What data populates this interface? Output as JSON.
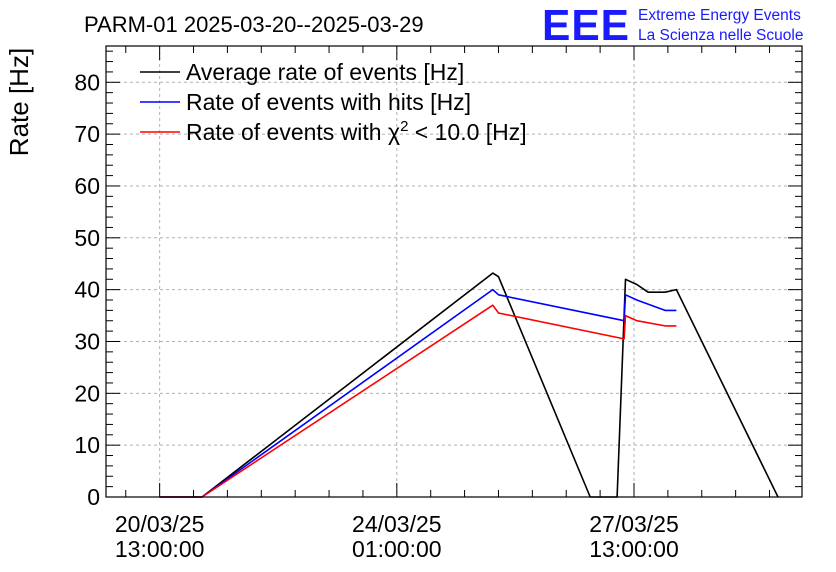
{
  "header": {
    "title": "PARM-01 2025-03-20--2025-03-29",
    "logo_mark": "EEE",
    "logo_line1": "Extreme Energy Events",
    "logo_line2": "La Scienza nelle Scuole",
    "brand_color": "#1a1aff"
  },
  "chart_data": {
    "type": "line",
    "title": "PARM-01 2025-03-20--2025-03-29",
    "xlabel": "",
    "ylabel": "Rate [Hz]",
    "ylim": [
      0,
      87
    ],
    "xlim": [
      "2025-03-19T18:00:00",
      "2025-03-30T00:30:00"
    ],
    "grid": true,
    "legend_position": "top-left",
    "yticks": [
      0,
      10,
      20,
      30,
      40,
      50,
      60,
      70,
      80
    ],
    "ytick_labels": [
      "0",
      "10",
      "20",
      "30",
      "40",
      "50",
      "60",
      "70",
      "80"
    ],
    "xticks": [
      {
        "t": "2025-03-20T13:00:00",
        "date": "20/03/25",
        "time": "13:00:00"
      },
      {
        "t": "2025-03-24T01:00:00",
        "date": "24/03/25",
        "time": "01:00:00"
      },
      {
        "t": "2025-03-27T13:00:00",
        "date": "27/03/25",
        "time": "13:00:00"
      }
    ],
    "series": [
      {
        "name": "Average rate of events [Hz]",
        "color": "#000000",
        "points": [
          [
            "2025-03-20T13:00:00",
            0
          ],
          [
            "2025-03-21T04:00:00",
            0
          ],
          [
            "2025-03-25T11:00:00",
            43.2
          ],
          [
            "2025-03-25T13:00:00",
            42.5
          ],
          [
            "2025-03-26T21:30:00",
            0
          ],
          [
            "2025-03-27T07:00:00",
            0
          ],
          [
            "2025-03-27T10:00:00",
            42.0
          ],
          [
            "2025-03-27T14:00:00",
            41.0
          ],
          [
            "2025-03-27T18:00:00",
            39.5
          ],
          [
            "2025-03-28T00:00:00",
            39.5
          ],
          [
            "2025-03-28T04:00:00",
            40.0
          ],
          [
            "2025-03-29T16:00:00",
            0
          ]
        ]
      },
      {
        "name": "Rate of events with hits [Hz]",
        "color": "#0000ff",
        "points": [
          [
            "2025-03-20T13:00:00",
            0
          ],
          [
            "2025-03-21T04:00:00",
            0
          ],
          [
            "2025-03-25T11:00:00",
            40.0
          ],
          [
            "2025-03-25T13:00:00",
            39.0
          ],
          [
            "2025-03-27T09:30:00",
            34.0
          ],
          [
            "2025-03-27T10:00:00",
            39.0
          ],
          [
            "2025-03-27T14:00:00",
            38.0
          ],
          [
            "2025-03-28T00:00:00",
            36.0
          ],
          [
            "2025-03-28T04:00:00",
            36.0
          ]
        ]
      },
      {
        "name": "Rate of events with χ2 < 10.0 [Hz]",
        "color": "#ff0000",
        "points": [
          [
            "2025-03-20T13:00:00",
            0
          ],
          [
            "2025-03-21T04:00:00",
            0
          ],
          [
            "2025-03-25T11:00:00",
            37.0
          ],
          [
            "2025-03-25T13:00:00",
            35.5
          ],
          [
            "2025-03-27T09:30:00",
            30.5
          ],
          [
            "2025-03-27T10:00:00",
            35.0
          ],
          [
            "2025-03-27T14:00:00",
            34.0
          ],
          [
            "2025-03-28T00:00:00",
            33.0
          ],
          [
            "2025-03-28T04:00:00",
            33.0
          ]
        ]
      }
    ],
    "legend": [
      {
        "label": "Average rate of events [Hz]",
        "color": "#000000"
      },
      {
        "label": "Rate of events with hits [Hz]",
        "color": "#0000ff"
      },
      {
        "label_prefix": "Rate of events with ",
        "label_symbol": "χ",
        "label_sup": "2",
        "label_suffix": " < 10.0 [Hz]",
        "color": "#ff0000"
      }
    ]
  }
}
